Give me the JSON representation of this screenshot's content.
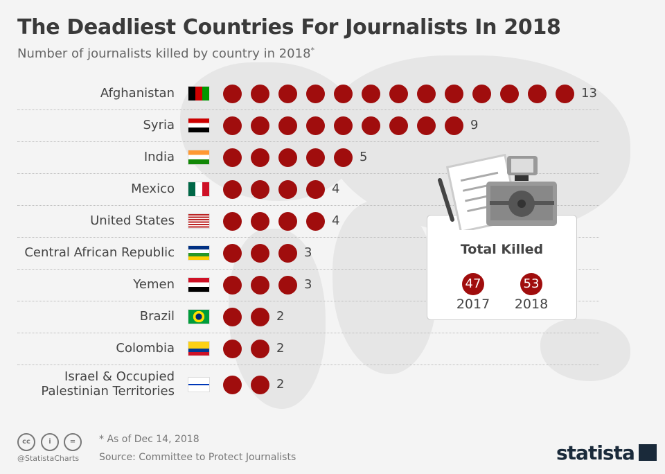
{
  "header": {
    "title": "The Deadliest Countries For Journalists In 2018",
    "subtitle": "Number of journalists killed by country in 2018",
    "subtitle_mark": "*"
  },
  "chart_data": {
    "type": "pictogram-bar",
    "title": "The Deadliest Countries For Journalists In 2018",
    "subtitle": "Number of journalists killed by country in 2018*",
    "categories": [
      "Afghanistan",
      "Syria",
      "India",
      "Mexico",
      "United States",
      "Central African Republic",
      "Yemen",
      "Brazil",
      "Colombia",
      "Israel & Occupied Palestinian Territories"
    ],
    "label_lines": [
      [
        "Afghanistan"
      ],
      [
        "Syria"
      ],
      [
        "India"
      ],
      [
        "Mexico"
      ],
      [
        "United States"
      ],
      [
        "Central African Republic"
      ],
      [
        "Yemen"
      ],
      [
        "Brazil"
      ],
      [
        "Colombia"
      ],
      [
        "Israel & Occupied",
        "Palestinian Territories"
      ]
    ],
    "values": [
      13,
      9,
      5,
      4,
      4,
      3,
      3,
      2,
      2,
      2
    ],
    "value_labels": [
      "13",
      "9",
      "5",
      "4",
      "4",
      "3",
      "3",
      "2",
      "2",
      "2"
    ],
    "dot_color": "#a00d0d"
  },
  "totals": {
    "title": "Total Killed",
    "items": [
      {
        "value": "47",
        "year": "2017"
      },
      {
        "value": "53",
        "year": "2018"
      }
    ]
  },
  "footer": {
    "note": "* As of Dec 14, 2018",
    "source": "Source: Committee to Protect Journalists",
    "handle": "@StatistaCharts",
    "cc": [
      "cc",
      "i",
      "="
    ],
    "brand": "statista"
  }
}
